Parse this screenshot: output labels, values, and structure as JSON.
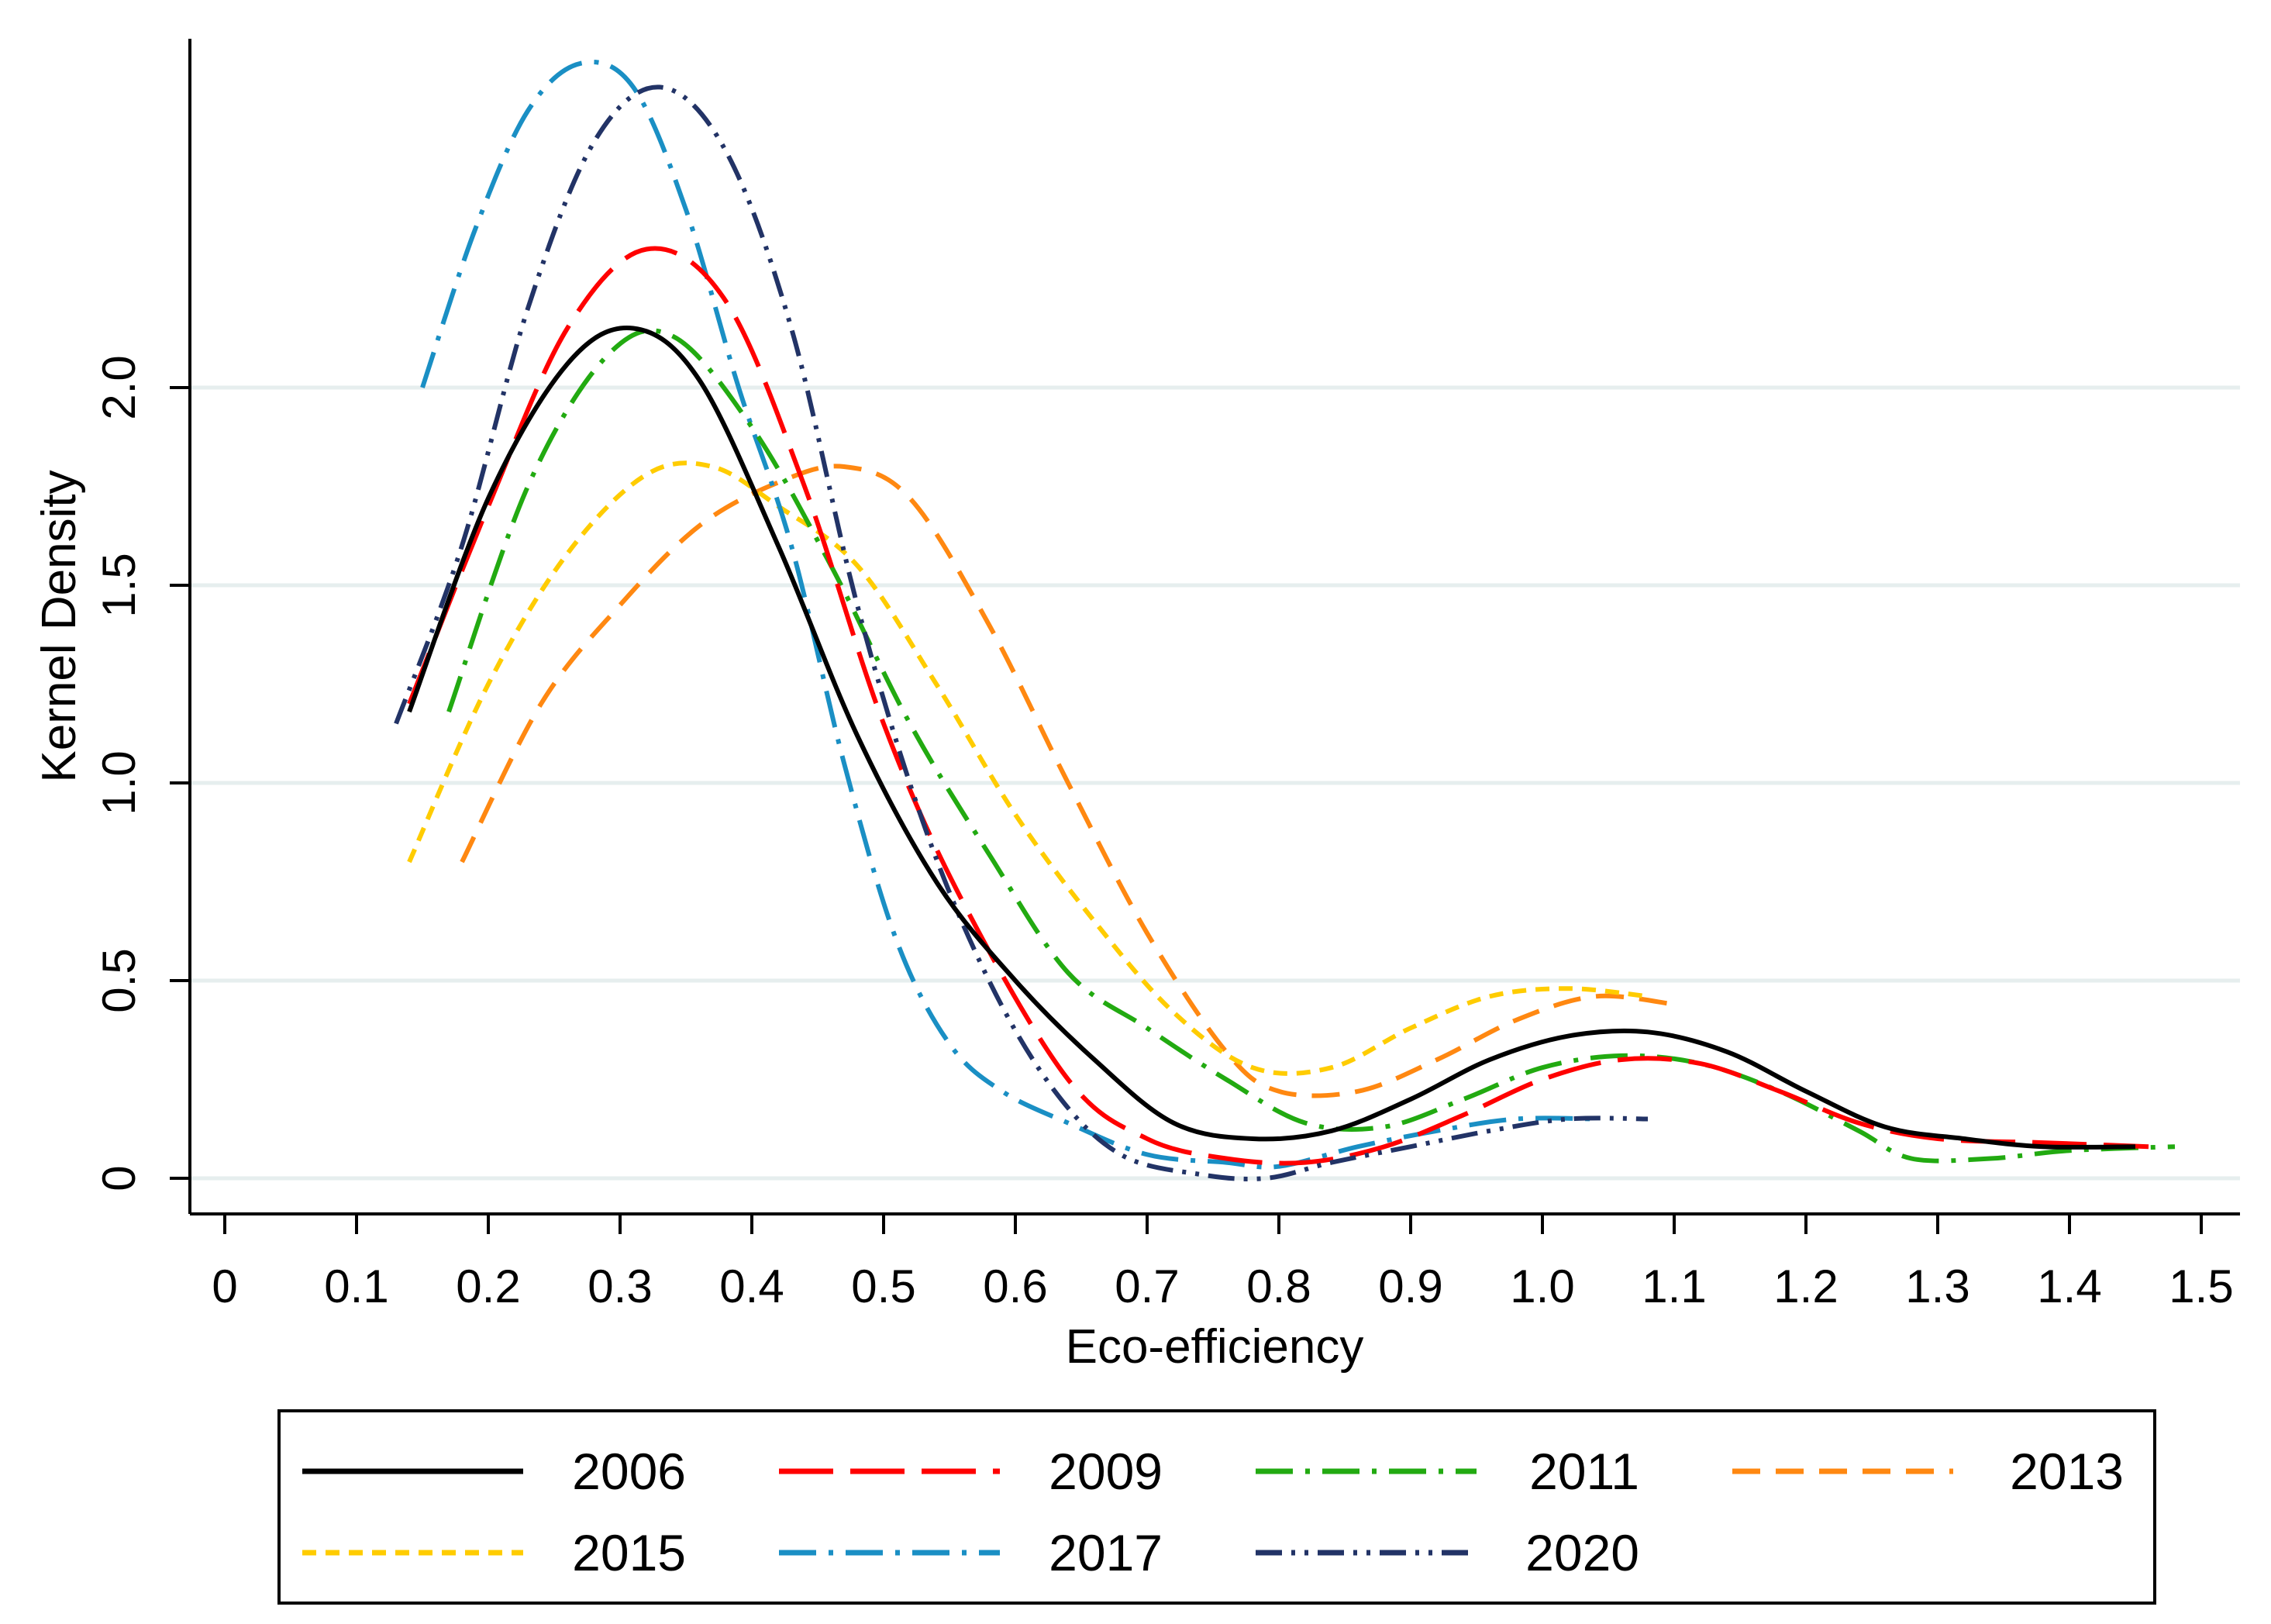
{
  "chart_data": {
    "type": "line",
    "title": "",
    "xlabel": "Eco-efficiency",
    "ylabel": "Kernel Density",
    "xlim": [
      -0.03,
      1.52
    ],
    "ylim": [
      -0.1,
      2.9
    ],
    "x_ticks": [
      {
        "value": 0,
        "label": "0"
      },
      {
        "value": 0.1,
        "label": "0.1"
      },
      {
        "value": 0.2,
        "label": "0.2"
      },
      {
        "value": 0.3,
        "label": "0.3"
      },
      {
        "value": 0.4,
        "label": "0.4"
      },
      {
        "value": 0.5,
        "label": "0.5"
      },
      {
        "value": 0.6,
        "label": "0.6"
      },
      {
        "value": 0.7,
        "label": "0.7"
      },
      {
        "value": 0.8,
        "label": "0.8"
      },
      {
        "value": 0.9,
        "label": "0.9"
      },
      {
        "value": 1.0,
        "label": "1.0"
      },
      {
        "value": 1.1,
        "label": "1.1"
      },
      {
        "value": 1.2,
        "label": "1.2"
      },
      {
        "value": 1.3,
        "label": "1.3"
      },
      {
        "value": 1.4,
        "label": "1.4"
      },
      {
        "value": 1.5,
        "label": "1.5"
      }
    ],
    "y_ticks": [
      {
        "value": 0,
        "label": "0"
      },
      {
        "value": 0.5,
        "label": "0.5"
      },
      {
        "value": 1.0,
        "label": "1.0"
      },
      {
        "value": 1.5,
        "label": "1.5"
      },
      {
        "value": 2.0,
        "label": "2.0"
      }
    ],
    "grid": "horizontal",
    "legend_position": "bottom",
    "series": [
      {
        "name": "2006",
        "color": "#000000",
        "dash": "solid",
        "x": [
          0.14,
          0.2,
          0.26,
          0.31,
          0.36,
          0.42,
          0.48,
          0.54,
          0.6,
          0.66,
          0.72,
          0.78,
          0.84,
          0.9,
          0.96,
          1.02,
          1.08,
          1.14,
          1.2,
          1.26,
          1.32,
          1.38,
          1.45
        ],
        "y": [
          1.18,
          1.72,
          2.06,
          2.15,
          2.02,
          1.6,
          1.12,
          0.75,
          0.5,
          0.3,
          0.14,
          0.1,
          0.12,
          0.2,
          0.3,
          0.36,
          0.37,
          0.32,
          0.22,
          0.13,
          0.1,
          0.08,
          0.08
        ]
      },
      {
        "name": "2009",
        "color": "#ff0000",
        "dash": "long-dash",
        "x": [
          0.14,
          0.2,
          0.26,
          0.32,
          0.38,
          0.44,
          0.5,
          0.56,
          0.64,
          0.7,
          0.76,
          0.82,
          0.88,
          0.94,
          1.0,
          1.06,
          1.12,
          1.18,
          1.24,
          1.3,
          1.38,
          1.46
        ],
        "y": [
          1.2,
          1.7,
          2.15,
          2.35,
          2.22,
          1.75,
          1.15,
          0.7,
          0.25,
          0.1,
          0.05,
          0.04,
          0.08,
          0.16,
          0.25,
          0.3,
          0.29,
          0.22,
          0.14,
          0.1,
          0.09,
          0.08
        ]
      },
      {
        "name": "2011",
        "color": "#22aa11",
        "dash": "dash-dot",
        "x": [
          0.17,
          0.23,
          0.29,
          0.34,
          0.4,
          0.46,
          0.52,
          0.58,
          0.64,
          0.7,
          0.76,
          0.82,
          0.88,
          0.94,
          1.0,
          1.06,
          1.12,
          1.18,
          1.24,
          1.28,
          1.34,
          1.4,
          1.48
        ],
        "y": [
          1.18,
          1.75,
          2.08,
          2.13,
          1.9,
          1.55,
          1.15,
          0.82,
          0.52,
          0.38,
          0.25,
          0.14,
          0.13,
          0.2,
          0.28,
          0.31,
          0.29,
          0.22,
          0.12,
          0.05,
          0.05,
          0.07,
          0.08
        ]
      },
      {
        "name": "2013",
        "color": "#ff8811",
        "dash": "dash",
        "x": [
          0.18,
          0.24,
          0.3,
          0.36,
          0.42,
          0.47,
          0.52,
          0.58,
          0.64,
          0.7,
          0.76,
          0.8,
          0.86,
          0.92,
          0.98,
          1.04,
          1.1
        ],
        "y": [
          0.8,
          1.2,
          1.45,
          1.65,
          1.76,
          1.8,
          1.72,
          1.4,
          1.0,
          0.62,
          0.32,
          0.22,
          0.22,
          0.3,
          0.4,
          0.46,
          0.44
        ]
      },
      {
        "name": "2015",
        "color": "#ffcc00",
        "dash": "short-dash",
        "x": [
          0.14,
          0.2,
          0.26,
          0.32,
          0.37,
          0.42,
          0.48,
          0.54,
          0.6,
          0.66,
          0.72,
          0.78,
          0.84,
          0.9,
          0.96,
          1.02,
          1.08
        ],
        "y": [
          0.8,
          1.25,
          1.58,
          1.78,
          1.8,
          1.7,
          1.55,
          1.25,
          0.92,
          0.65,
          0.42,
          0.28,
          0.28,
          0.38,
          0.46,
          0.48,
          0.46
        ]
      },
      {
        "name": "2017",
        "color": "#1a8fc4",
        "dash": "dash-dot",
        "x": [
          0.15,
          0.19,
          0.23,
          0.27,
          0.31,
          0.35,
          0.39,
          0.43,
          0.47,
          0.51,
          0.55,
          0.59,
          0.64,
          0.7,
          0.76,
          0.8,
          0.86,
          0.92,
          0.98,
          1.04
        ],
        "y": [
          2.0,
          2.4,
          2.7,
          2.82,
          2.76,
          2.45,
          2.0,
          1.6,
          1.05,
          0.6,
          0.34,
          0.22,
          0.14,
          0.06,
          0.04,
          0.03,
          0.08,
          0.12,
          0.15,
          0.15
        ]
      },
      {
        "name": "2020",
        "color": "#223366",
        "dash": "dash-dot-dot",
        "x": [
          0.13,
          0.18,
          0.23,
          0.28,
          0.33,
          0.38,
          0.43,
          0.48,
          0.53,
          0.58,
          0.63,
          0.68,
          0.74,
          0.79,
          0.84,
          0.9,
          0.96,
          1.02,
          1.08
        ],
        "y": [
          1.15,
          1.6,
          2.2,
          2.62,
          2.76,
          2.6,
          2.15,
          1.45,
          0.9,
          0.5,
          0.22,
          0.06,
          0.01,
          0.0,
          0.04,
          0.08,
          0.12,
          0.15,
          0.15
        ]
      }
    ]
  }
}
